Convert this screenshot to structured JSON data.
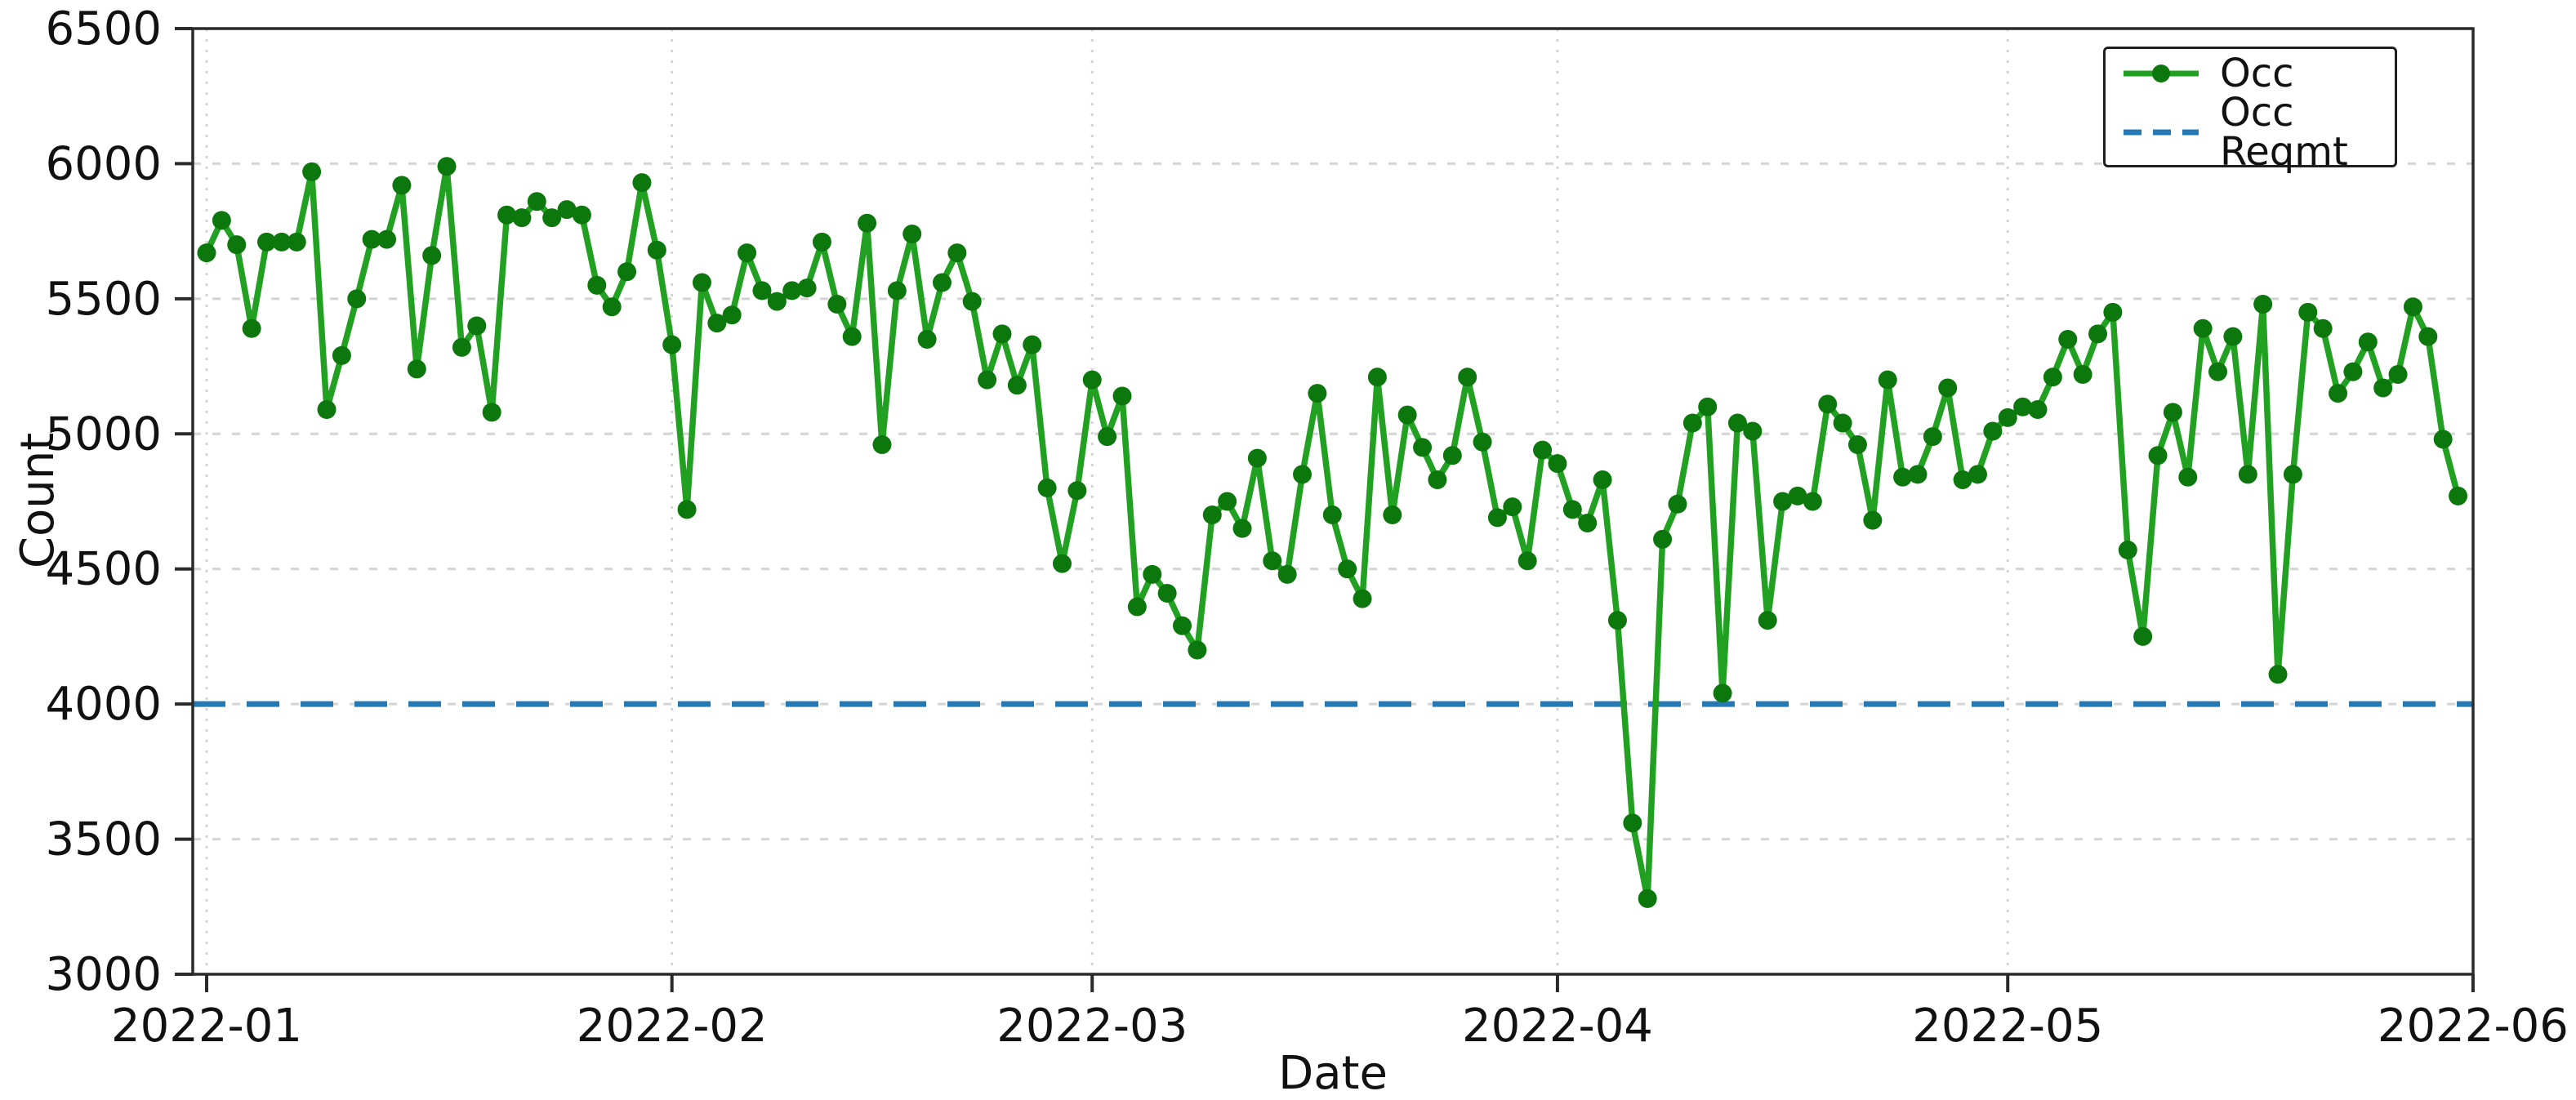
{
  "axes": {
    "x_label": "Date",
    "y_label": "Count"
  },
  "legend": {
    "position": "upper right",
    "items": [
      "Occ",
      "Occ Reqmt"
    ]
  },
  "colors": {
    "occ_line": "#22a022",
    "occ_marker": "#0c770c",
    "reqmt_line": "#2579b5",
    "gridline": "#d4d4d4",
    "spine": "#2a2a2a",
    "tick_text": "#111111"
  },
  "chart_data": {
    "type": "line",
    "title": "",
    "xlabel": "Date",
    "ylabel": "Count",
    "ylim": [
      3000,
      6500
    ],
    "y_ticks": [
      3000,
      3500,
      4000,
      4500,
      5000,
      5500,
      6000,
      6500
    ],
    "x_start_date": "2022-01-01",
    "x_frequency": "daily",
    "x_ticks": [
      {
        "day_offset": 0,
        "label": "2022-01"
      },
      {
        "day_offset": 31,
        "label": "2022-02"
      },
      {
        "day_offset": 59,
        "label": "2022-03"
      },
      {
        "day_offset": 90,
        "label": "2022-04"
      },
      {
        "day_offset": 120,
        "label": "2022-05"
      },
      {
        "day_offset": 151,
        "label": "2022-06"
      }
    ],
    "grid": true,
    "legend_position": "upper right",
    "series": [
      {
        "name": "Occ",
        "type": "line+markers",
        "color": "#22a022",
        "marker_color": "#0c770c",
        "values": [
          5670,
          5790,
          5700,
          5390,
          5710,
          5710,
          5710,
          5970,
          5090,
          5290,
          5500,
          5720,
          5720,
          5920,
          5240,
          5660,
          5990,
          5320,
          5400,
          5080,
          5810,
          5800,
          5860,
          5800,
          5830,
          5810,
          5550,
          5470,
          5600,
          5930,
          5680,
          5330,
          4720,
          5560,
          5410,
          5440,
          5670,
          5530,
          5490,
          5530,
          5540,
          5710,
          5480,
          5360,
          5780,
          4960,
          5530,
          5740,
          5350,
          5560,
          5670,
          5490,
          5200,
          5370,
          5180,
          5330,
          4800,
          4520,
          4790,
          5200,
          4990,
          5140,
          4360,
          4480,
          4410,
          4290,
          4200,
          4700,
          4750,
          4650,
          4910,
          4530,
          4480,
          4850,
          5150,
          4700,
          4500,
          4390,
          5210,
          4700,
          5070,
          4950,
          4830,
          4920,
          5210,
          4970,
          4690,
          4730,
          4530,
          4940,
          4890,
          4720,
          4670,
          4830,
          4310,
          3560,
          3280,
          4610,
          4740,
          5040,
          5100,
          4040,
          5040,
          5010,
          4310,
          4750,
          4770,
          4750,
          5110,
          5040,
          4960,
          4680,
          5200,
          4840,
          4850,
          4990,
          5170,
          4830,
          4850,
          5010,
          5060,
          5100,
          5090,
          5210,
          5350,
          5220,
          5370,
          5450,
          4570,
          4250,
          4920,
          5080,
          4840,
          5390,
          5230,
          5360,
          4850,
          5480,
          4110,
          4850,
          5450,
          5390,
          5150,
          5230,
          5340,
          5170,
          5220,
          5470,
          5360,
          4980,
          4770
        ]
      },
      {
        "name": "Occ Reqmt",
        "type": "hline-dashed",
        "color": "#2579b5",
        "value": 4000
      }
    ]
  }
}
